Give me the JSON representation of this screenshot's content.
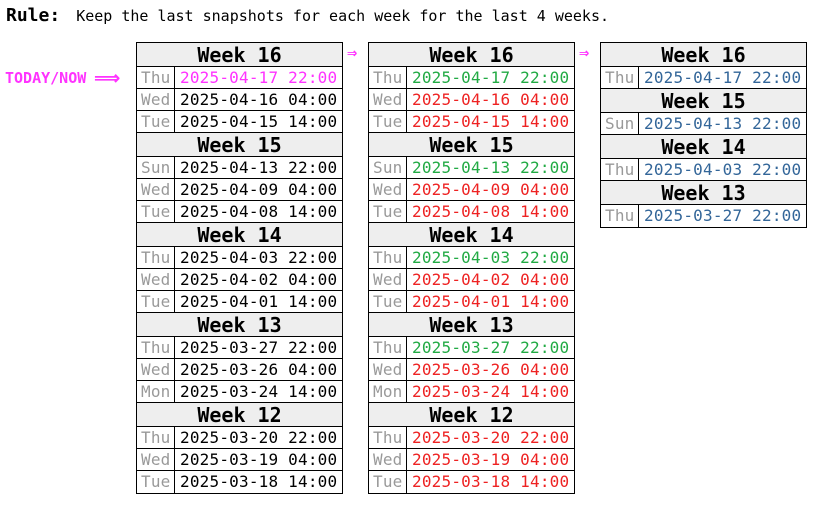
{
  "rule": {
    "label": "Rule:",
    "text": "Keep the last snapshots for each week for the last 4 weeks."
  },
  "today_marker": {
    "label": "TODAY/NOW",
    "arrow": "⟹"
  },
  "col_arrow": "⇒",
  "colors": {
    "today": "#ff33ff",
    "kept": "#22aa44",
    "removed": "#ee2222",
    "result": "#336699",
    "day": "#999999",
    "header_bg": "#eeeeee"
  },
  "columns": [
    {
      "weeks": [
        {
          "title": "Week 16",
          "rows": [
            {
              "day": "Thu",
              "ts": "2025-04-17 22:00",
              "status": "today"
            },
            {
              "day": "Wed",
              "ts": "2025-04-16 04:00",
              "status": ""
            },
            {
              "day": "Tue",
              "ts": "2025-04-15 14:00",
              "status": ""
            }
          ]
        },
        {
          "title": "Week 15",
          "rows": [
            {
              "day": "Sun",
              "ts": "2025-04-13 22:00",
              "status": ""
            },
            {
              "day": "Wed",
              "ts": "2025-04-09 04:00",
              "status": ""
            },
            {
              "day": "Tue",
              "ts": "2025-04-08 14:00",
              "status": ""
            }
          ]
        },
        {
          "title": "Week 14",
          "rows": [
            {
              "day": "Thu",
              "ts": "2025-04-03 22:00",
              "status": ""
            },
            {
              "day": "Wed",
              "ts": "2025-04-02 04:00",
              "status": ""
            },
            {
              "day": "Tue",
              "ts": "2025-04-01 14:00",
              "status": ""
            }
          ]
        },
        {
          "title": "Week 13",
          "rows": [
            {
              "day": "Thu",
              "ts": "2025-03-27 22:00",
              "status": ""
            },
            {
              "day": "Wed",
              "ts": "2025-03-26 04:00",
              "status": ""
            },
            {
              "day": "Mon",
              "ts": "2025-03-24 14:00",
              "status": ""
            }
          ]
        },
        {
          "title": "Week 12",
          "rows": [
            {
              "day": "Thu",
              "ts": "2025-03-20 22:00",
              "status": ""
            },
            {
              "day": "Wed",
              "ts": "2025-03-19 04:00",
              "status": ""
            },
            {
              "day": "Tue",
              "ts": "2025-03-18 14:00",
              "status": ""
            }
          ]
        }
      ]
    },
    {
      "weeks": [
        {
          "title": "Week 16",
          "rows": [
            {
              "day": "Thu",
              "ts": "2025-04-17 22:00",
              "status": "kept"
            },
            {
              "day": "Wed",
              "ts": "2025-04-16 04:00",
              "status": "removed"
            },
            {
              "day": "Tue",
              "ts": "2025-04-15 14:00",
              "status": "removed"
            }
          ]
        },
        {
          "title": "Week 15",
          "rows": [
            {
              "day": "Sun",
              "ts": "2025-04-13 22:00",
              "status": "kept"
            },
            {
              "day": "Wed",
              "ts": "2025-04-09 04:00",
              "status": "removed"
            },
            {
              "day": "Tue",
              "ts": "2025-04-08 14:00",
              "status": "removed"
            }
          ]
        },
        {
          "title": "Week 14",
          "rows": [
            {
              "day": "Thu",
              "ts": "2025-04-03 22:00",
              "status": "kept"
            },
            {
              "day": "Wed",
              "ts": "2025-04-02 04:00",
              "status": "removed"
            },
            {
              "day": "Tue",
              "ts": "2025-04-01 14:00",
              "status": "removed"
            }
          ]
        },
        {
          "title": "Week 13",
          "rows": [
            {
              "day": "Thu",
              "ts": "2025-03-27 22:00",
              "status": "kept"
            },
            {
              "day": "Wed",
              "ts": "2025-03-26 04:00",
              "status": "removed"
            },
            {
              "day": "Mon",
              "ts": "2025-03-24 14:00",
              "status": "removed"
            }
          ]
        },
        {
          "title": "Week 12",
          "rows": [
            {
              "day": "Thu",
              "ts": "2025-03-20 22:00",
              "status": "removed"
            },
            {
              "day": "Wed",
              "ts": "2025-03-19 04:00",
              "status": "removed"
            },
            {
              "day": "Tue",
              "ts": "2025-03-18 14:00",
              "status": "removed"
            }
          ]
        }
      ]
    },
    {
      "weeks": [
        {
          "title": "Week 16",
          "rows": [
            {
              "day": "Thu",
              "ts": "2025-04-17 22:00",
              "status": "result"
            }
          ]
        },
        {
          "title": "Week 15",
          "rows": [
            {
              "day": "Sun",
              "ts": "2025-04-13 22:00",
              "status": "result"
            }
          ]
        },
        {
          "title": "Week 14",
          "rows": [
            {
              "day": "Thu",
              "ts": "2025-04-03 22:00",
              "status": "result"
            }
          ]
        },
        {
          "title": "Week 13",
          "rows": [
            {
              "day": "Thu",
              "ts": "2025-03-27 22:00",
              "status": "result"
            }
          ]
        }
      ]
    }
  ]
}
